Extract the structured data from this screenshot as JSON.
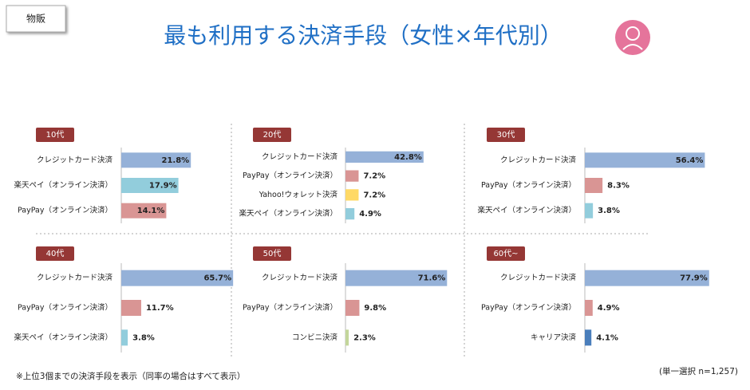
{
  "tag": "物販",
  "title": "最も利用する決済手段（女性×年代別）",
  "note": "※上位3個までの決済手段を表示（同率の場合はすべて表示）",
  "sample": "(単一選択 n=1,257)",
  "chart_data": [
    {
      "type": "bar",
      "orientation": "horizontal",
      "title": "10代",
      "categories": [
        "クレジットカード決済",
        "楽天ペイ（オンライン決済）",
        "PayPay（オンライン決済）"
      ],
      "values": [
        21.8,
        17.9,
        14.1
      ],
      "value_labels": [
        "21.8%",
        "17.9%",
        "14.1%"
      ],
      "colors": [
        "#95b1d8",
        "#92cddc",
        "#d99594"
      ],
      "xlim": [
        0,
        40
      ]
    },
    {
      "type": "bar",
      "orientation": "horizontal",
      "title": "20代",
      "categories": [
        "クレジットカード決済",
        "PayPay（オンライン決済）",
        "Yahoo!ウォレット決済",
        "楽天ペイ（オンライン決済）"
      ],
      "values": [
        42.8,
        7.2,
        7.2,
        4.9
      ],
      "value_labels": [
        "42.8%",
        "7.2%",
        "7.2%",
        "4.9%"
      ],
      "colors": [
        "#95b1d8",
        "#d99594",
        "#ffd966",
        "#92cddc"
      ],
      "xlim": [
        0,
        70
      ]
    },
    {
      "type": "bar",
      "orientation": "horizontal",
      "title": "30代",
      "categories": [
        "クレジットカード決済",
        "PayPay（オンライン決済）",
        "楽天ペイ（オンライン決済）"
      ],
      "values": [
        56.4,
        8.3,
        3.8
      ],
      "value_labels": [
        "56.4%",
        "8.3%",
        "3.8%"
      ],
      "colors": [
        "#95b1d8",
        "#d99594",
        "#92cddc"
      ],
      "xlim": [
        0,
        60
      ]
    },
    {
      "type": "bar",
      "orientation": "horizontal",
      "title": "40代",
      "categories": [
        "クレジットカード決済",
        "PayPay（オンライン決済）",
        "楽天ペイ（オンライン決済）"
      ],
      "values": [
        65.7,
        11.7,
        3.8
      ],
      "value_labels": [
        "65.7%",
        "11.7%",
        "3.8%"
      ],
      "colors": [
        "#95b1d8",
        "#d99594",
        "#92cddc"
      ],
      "xlim": [
        0,
        75
      ]
    },
    {
      "type": "bar",
      "orientation": "horizontal",
      "title": "50代",
      "categories": [
        "クレジットカード決済",
        "PayPay（オンライン決済）",
        "コンビニ決済"
      ],
      "values": [
        71.6,
        9.8,
        2.3
      ],
      "value_labels": [
        "71.6%",
        "9.8%",
        "2.3%"
      ],
      "colors": [
        "#95b1d8",
        "#d99594",
        "#c3d69b"
      ],
      "xlim": [
        0,
        90
      ]
    },
    {
      "type": "bar",
      "orientation": "horizontal",
      "title": "60代~",
      "categories": [
        "クレジットカード決済",
        "PayPay（オンライン決済）",
        "キャリア決済"
      ],
      "values": [
        77.9,
        4.9,
        4.1
      ],
      "value_labels": [
        "77.9%",
        "4.9%",
        "4.1%"
      ],
      "colors": [
        "#95b1d8",
        "#d99594",
        "#4a7ebb"
      ],
      "xlim": [
        0,
        80
      ]
    }
  ]
}
